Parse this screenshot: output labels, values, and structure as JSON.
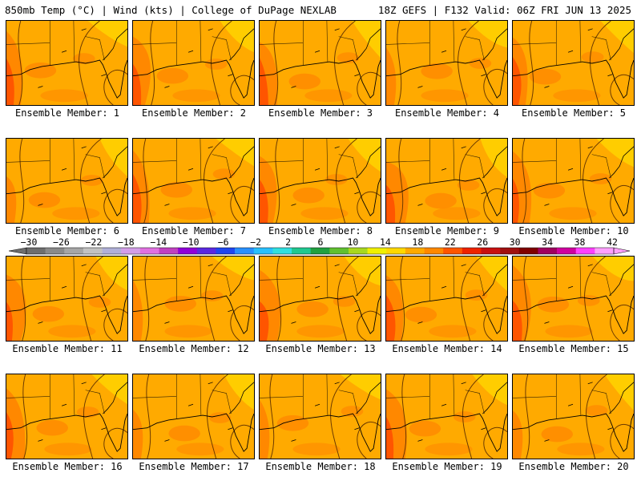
{
  "header": {
    "left": "850mb Temp (°C) | Wind (kts) | College of DuPage NEXLAB",
    "right": "18Z GEFS | F132 Valid: 06Z FRI JUN 13 2025"
  },
  "member_prefix": "Ensemble Member: ",
  "members": [
    {
      "label": "Ensemble Member: 1",
      "warm_west": true
    },
    {
      "label": "Ensemble Member: 2",
      "warm_west": true
    },
    {
      "label": "Ensemble Member: 3",
      "warm_west": true
    },
    {
      "label": "Ensemble Member: 4",
      "warm_west": false
    },
    {
      "label": "Ensemble Member: 5",
      "warm_west": true
    },
    {
      "label": "Ensemble Member: 6",
      "warm_west": false
    },
    {
      "label": "Ensemble Member: 7",
      "warm_west": true
    },
    {
      "label": "Ensemble Member: 8",
      "warm_west": true
    },
    {
      "label": "Ensemble Member: 9",
      "warm_west": true
    },
    {
      "label": "Ensemble Member: 10",
      "warm_west": true
    },
    {
      "label": "Ensemble Member: 11",
      "warm_west": true
    },
    {
      "label": "Ensemble Member: 12",
      "warm_west": false
    },
    {
      "label": "Ensemble Member: 13",
      "warm_west": true
    },
    {
      "label": "Ensemble Member: 14",
      "warm_west": true
    },
    {
      "label": "Ensemble Member: 15",
      "warm_west": true
    },
    {
      "label": "Ensemble Member: 16",
      "warm_west": true
    },
    {
      "label": "Ensemble Member: 17",
      "warm_west": false
    },
    {
      "label": "Ensemble Member: 18",
      "warm_west": false
    },
    {
      "label": "Ensemble Member: 19",
      "warm_west": true
    },
    {
      "label": "Ensemble Member: 20",
      "warm_west": false
    }
  ],
  "colorbar": {
    "labels": [
      "−30",
      "−26",
      "−22",
      "−18",
      "−14",
      "−10",
      "−6",
      "−2",
      "2",
      "6",
      "10",
      "14",
      "18",
      "22",
      "26",
      "30",
      "34",
      "38",
      "42"
    ],
    "colors": [
      "#6e6e6e",
      "#8a8a8a",
      "#a6a6a6",
      "#c2c2c2",
      "#b0b0d8",
      "#d39ee8",
      "#e070e0",
      "#c040c0",
      "#9000d8",
      "#5a28e0",
      "#1e46f0",
      "#2890ff",
      "#28c0ff",
      "#30e0e0",
      "#20c890",
      "#20a040",
      "#60c030",
      "#a8d820",
      "#f0f000",
      "#ffd800",
      "#ffaa00",
      "#ff8800",
      "#ff5500",
      "#ee2200",
      "#c81010",
      "#a01010",
      "#800000",
      "#a00060",
      "#d000a0",
      "#ff40ff",
      "#ffa0ff"
    ]
  },
  "colors": {
    "base": "#ffaa00",
    "warm": "#ff8800",
    "hot": "#ff5500",
    "cool": "#ffd000",
    "line": "#6b3a00"
  }
}
